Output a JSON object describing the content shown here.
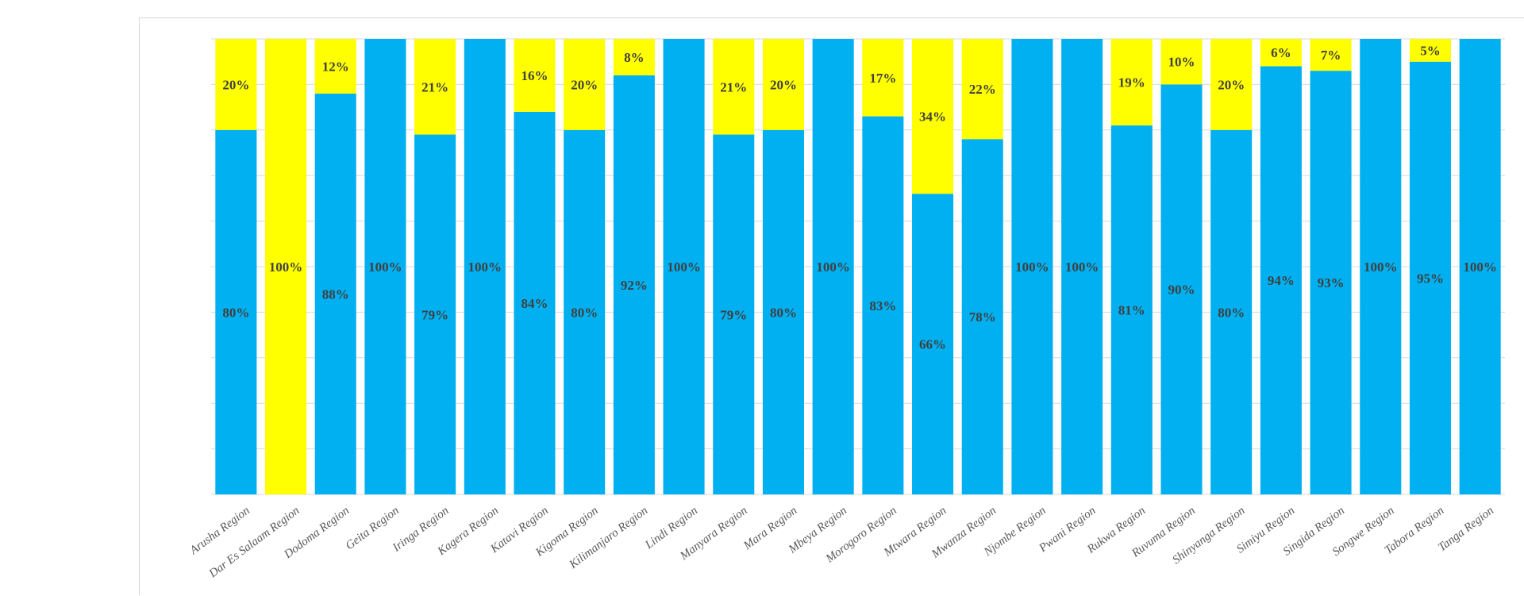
{
  "chart_data": {
    "type": "bar",
    "stacked": true,
    "percent_stacked": true,
    "ylim": [
      0,
      100
    ],
    "grid": true,
    "colors": {
      "lower": "#00b0f0",
      "upper": "#ffff00"
    },
    "categories": [
      "Arusha Region",
      "Dar Es Salaam Region",
      "Dodoma Region",
      "Geita Region",
      "Iringa Region",
      "Kagera Region",
      "Katavi Region",
      "Kigoma Region",
      "Kilimanjaro Region",
      "Lindi Region",
      "Manyara Region",
      "Mara Region",
      "Mbeya Region",
      "Morogoro Region",
      "Mtwara Region",
      "Mwanza Region",
      "Njombe Region",
      "Pwani Region",
      "Rukwa Region",
      "Ruvuma Region",
      "Shinyanga Region",
      "Simiyu Region",
      "Singida Region",
      "Songwe Region",
      "Tabora Region",
      "Tanga Region"
    ],
    "series": [
      {
        "values": [
          80,
          0,
          88,
          100,
          79,
          100,
          84,
          80,
          92,
          100,
          79,
          80,
          100,
          83,
          66,
          78,
          100,
          100,
          81,
          90,
          80,
          94,
          93,
          100,
          95,
          100
        ],
        "labels": [
          "80%",
          "",
          "88%",
          "100%",
          "79%",
          "100%",
          "84%",
          "80%",
          "92%",
          "100%",
          "79%",
          "80%",
          "100%",
          "83%",
          "66%",
          "78%",
          "100%",
          "100%",
          "81%",
          "90%",
          "80%",
          "94%",
          "93%",
          "100%",
          "95%",
          "100%"
        ]
      },
      {
        "values": [
          20,
          100,
          12,
          0,
          21,
          0,
          16,
          20,
          8,
          0,
          21,
          20,
          0,
          17,
          34,
          22,
          0,
          0,
          19,
          10,
          20,
          6,
          7,
          0,
          5,
          0
        ],
        "labels": [
          "20%",
          "100%",
          "12%",
          "",
          "21%",
          "",
          "16%",
          "20%",
          "8%",
          "",
          "21%",
          "20%",
          "",
          "17%",
          "34%",
          "22%",
          "",
          "",
          "19%",
          "10%",
          "20%",
          "6%",
          "7%",
          "",
          "5%",
          ""
        ]
      }
    ]
  }
}
